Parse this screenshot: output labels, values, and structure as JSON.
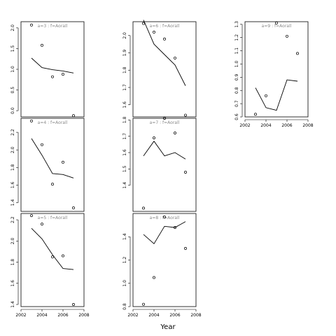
{
  "global": {
    "xlabel": "Year"
  },
  "chart_data": [
    {
      "type": "scatter",
      "label": "a=3  :  f=Aorall",
      "xlim": [
        2002,
        2008
      ],
      "ylim": [
        -0.15,
        2.15
      ],
      "yticks": [
        0.0,
        0.5,
        1.0,
        1.5,
        2.0
      ],
      "xticks": [],
      "observed": {
        "x": [
          2003,
          2004,
          2005,
          2006,
          2007
        ],
        "y": [
          2.07,
          1.58,
          0.82,
          0.88,
          -0.12
        ]
      },
      "fitted": {
        "x": [
          2003,
          2004,
          2005,
          2006,
          2007
        ],
        "y": [
          1.27,
          1.04,
          0.99,
          0.96,
          0.91
        ]
      }
    },
    {
      "type": "scatter",
      "label": "a=4  :  f=Aorall",
      "xlim": [
        2002,
        2008
      ],
      "ylim": [
        1.3,
        2.36
      ],
      "yticks": [
        1.4,
        1.6,
        1.8,
        2.0,
        2.2
      ],
      "xticks": [],
      "observed": {
        "x": [
          2003,
          2004,
          2005,
          2006,
          2007
        ],
        "y": [
          2.33,
          2.06,
          1.61,
          1.86,
          1.34
        ]
      },
      "fitted": {
        "x": [
          2003,
          2004,
          2005,
          2006,
          2007
        ],
        "y": [
          2.13,
          1.94,
          1.73,
          1.72,
          1.68
        ]
      }
    },
    {
      "type": "scatter",
      "label": "a=5  :  f=Aorall",
      "xlim": [
        2002,
        2008
      ],
      "ylim": [
        1.38,
        2.26
      ],
      "yticks": [
        1.4,
        1.6,
        1.8,
        2.0,
        2.2
      ],
      "xticks": [
        2002,
        2004,
        2006,
        2008
      ],
      "observed": {
        "x": [
          2003,
          2004,
          2005,
          2006,
          2007
        ],
        "y": [
          2.24,
          2.16,
          1.85,
          1.86,
          1.4
        ]
      },
      "fitted": {
        "x": [
          2003,
          2004,
          2005,
          2006,
          2007
        ],
        "y": [
          2.12,
          2.02,
          1.87,
          1.74,
          1.73
        ]
      }
    },
    {
      "type": "scatter",
      "label": "a=6  :  f=Aorall",
      "xlim": [
        2002,
        2008
      ],
      "ylim": [
        1.53,
        2.08
      ],
      "yticks": [
        1.6,
        1.7,
        1.8,
        1.9,
        2.0
      ],
      "xticks": [],
      "observed": {
        "x": [
          2003,
          2004,
          2005,
          2006,
          2007
        ],
        "y": [
          2.07,
          2.02,
          1.98,
          1.87,
          1.54
        ]
      },
      "fitted": {
        "x": [
          2003,
          2004,
          2005,
          2006,
          2007
        ],
        "y": [
          2.09,
          1.95,
          1.89,
          1.83,
          1.71
        ]
      }
    },
    {
      "type": "scatter",
      "label": "a=7  :  f=Aorall",
      "xlim": [
        2002,
        2008
      ],
      "ylim": [
        1.24,
        1.81
      ],
      "yticks": [
        1.4,
        1.5,
        1.6,
        1.7,
        1.8
      ],
      "xticks": [],
      "observed": {
        "x": [
          2003,
          2004,
          2005,
          2006,
          2007
        ],
        "y": [
          1.26,
          1.69,
          1.81,
          1.72,
          1.48
        ]
      },
      "fitted": {
        "x": [
          2003,
          2004,
          2005,
          2006,
          2007
        ],
        "y": [
          1.58,
          1.67,
          1.58,
          1.6,
          1.56
        ]
      }
    },
    {
      "type": "scatter",
      "label": "a=8  :  f=Aorall",
      "xlim": [
        2002,
        2008
      ],
      "ylim": [
        0.8,
        1.6
      ],
      "yticks": [
        0.8,
        1.0,
        1.2,
        1.4
      ],
      "xticks": [
        2002,
        2004,
        2006,
        2008
      ],
      "observed": {
        "x": [
          2003,
          2004,
          2005,
          2006,
          2007
        ],
        "y": [
          0.82,
          1.05,
          1.57,
          1.48,
          1.3
        ]
      },
      "fitted": {
        "x": [
          2003,
          2004,
          2005,
          2006,
          2007
        ],
        "y": [
          1.42,
          1.34,
          1.49,
          1.48,
          1.53
        ]
      }
    },
    {
      "type": "scatter",
      "label": "a=9  :  f=Aorall",
      "xlim": [
        2002,
        2008
      ],
      "ylim": [
        0.6,
        1.32
      ],
      "yticks": [
        0.6,
        0.7,
        0.8,
        0.9,
        1.0,
        1.1,
        1.2,
        1.3
      ],
      "xticks": [
        2002,
        2004,
        2006,
        2008
      ],
      "observed": {
        "x": [
          2003,
          2004,
          2005,
          2006,
          2007
        ],
        "y": [
          0.62,
          0.76,
          1.31,
          1.21,
          1.08
        ]
      },
      "fitted": {
        "x": [
          2003,
          2004,
          2005,
          2006,
          2007
        ],
        "y": [
          0.82,
          0.67,
          0.65,
          0.88,
          0.87
        ]
      }
    }
  ]
}
